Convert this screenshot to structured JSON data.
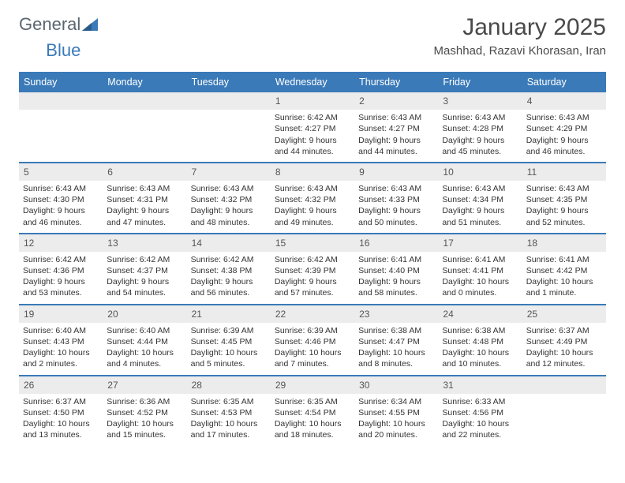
{
  "logo": {
    "text1": "General",
    "text2": "Blue"
  },
  "title": "January 2025",
  "location": "Mashhad, Razavi Khorasan, Iran",
  "colors": {
    "header_bg": "#3a7ab8",
    "header_text": "#ffffff",
    "daynum_bg": "#ececec",
    "border": "#3a7ab8"
  },
  "weekdays": [
    "Sunday",
    "Monday",
    "Tuesday",
    "Wednesday",
    "Thursday",
    "Friday",
    "Saturday"
  ],
  "weeks": [
    [
      {
        "n": "",
        "sunrise": "",
        "sunset": "",
        "daylight": ""
      },
      {
        "n": "",
        "sunrise": "",
        "sunset": "",
        "daylight": ""
      },
      {
        "n": "",
        "sunrise": "",
        "sunset": "",
        "daylight": ""
      },
      {
        "n": "1",
        "sunrise": "Sunrise: 6:42 AM",
        "sunset": "Sunset: 4:27 PM",
        "daylight": "Daylight: 9 hours and 44 minutes."
      },
      {
        "n": "2",
        "sunrise": "Sunrise: 6:43 AM",
        "sunset": "Sunset: 4:27 PM",
        "daylight": "Daylight: 9 hours and 44 minutes."
      },
      {
        "n": "3",
        "sunrise": "Sunrise: 6:43 AM",
        "sunset": "Sunset: 4:28 PM",
        "daylight": "Daylight: 9 hours and 45 minutes."
      },
      {
        "n": "4",
        "sunrise": "Sunrise: 6:43 AM",
        "sunset": "Sunset: 4:29 PM",
        "daylight": "Daylight: 9 hours and 46 minutes."
      }
    ],
    [
      {
        "n": "5",
        "sunrise": "Sunrise: 6:43 AM",
        "sunset": "Sunset: 4:30 PM",
        "daylight": "Daylight: 9 hours and 46 minutes."
      },
      {
        "n": "6",
        "sunrise": "Sunrise: 6:43 AM",
        "sunset": "Sunset: 4:31 PM",
        "daylight": "Daylight: 9 hours and 47 minutes."
      },
      {
        "n": "7",
        "sunrise": "Sunrise: 6:43 AM",
        "sunset": "Sunset: 4:32 PM",
        "daylight": "Daylight: 9 hours and 48 minutes."
      },
      {
        "n": "8",
        "sunrise": "Sunrise: 6:43 AM",
        "sunset": "Sunset: 4:32 PM",
        "daylight": "Daylight: 9 hours and 49 minutes."
      },
      {
        "n": "9",
        "sunrise": "Sunrise: 6:43 AM",
        "sunset": "Sunset: 4:33 PM",
        "daylight": "Daylight: 9 hours and 50 minutes."
      },
      {
        "n": "10",
        "sunrise": "Sunrise: 6:43 AM",
        "sunset": "Sunset: 4:34 PM",
        "daylight": "Daylight: 9 hours and 51 minutes."
      },
      {
        "n": "11",
        "sunrise": "Sunrise: 6:43 AM",
        "sunset": "Sunset: 4:35 PM",
        "daylight": "Daylight: 9 hours and 52 minutes."
      }
    ],
    [
      {
        "n": "12",
        "sunrise": "Sunrise: 6:42 AM",
        "sunset": "Sunset: 4:36 PM",
        "daylight": "Daylight: 9 hours and 53 minutes."
      },
      {
        "n": "13",
        "sunrise": "Sunrise: 6:42 AM",
        "sunset": "Sunset: 4:37 PM",
        "daylight": "Daylight: 9 hours and 54 minutes."
      },
      {
        "n": "14",
        "sunrise": "Sunrise: 6:42 AM",
        "sunset": "Sunset: 4:38 PM",
        "daylight": "Daylight: 9 hours and 56 minutes."
      },
      {
        "n": "15",
        "sunrise": "Sunrise: 6:42 AM",
        "sunset": "Sunset: 4:39 PM",
        "daylight": "Daylight: 9 hours and 57 minutes."
      },
      {
        "n": "16",
        "sunrise": "Sunrise: 6:41 AM",
        "sunset": "Sunset: 4:40 PM",
        "daylight": "Daylight: 9 hours and 58 minutes."
      },
      {
        "n": "17",
        "sunrise": "Sunrise: 6:41 AM",
        "sunset": "Sunset: 4:41 PM",
        "daylight": "Daylight: 10 hours and 0 minutes."
      },
      {
        "n": "18",
        "sunrise": "Sunrise: 6:41 AM",
        "sunset": "Sunset: 4:42 PM",
        "daylight": "Daylight: 10 hours and 1 minute."
      }
    ],
    [
      {
        "n": "19",
        "sunrise": "Sunrise: 6:40 AM",
        "sunset": "Sunset: 4:43 PM",
        "daylight": "Daylight: 10 hours and 2 minutes."
      },
      {
        "n": "20",
        "sunrise": "Sunrise: 6:40 AM",
        "sunset": "Sunset: 4:44 PM",
        "daylight": "Daylight: 10 hours and 4 minutes."
      },
      {
        "n": "21",
        "sunrise": "Sunrise: 6:39 AM",
        "sunset": "Sunset: 4:45 PM",
        "daylight": "Daylight: 10 hours and 5 minutes."
      },
      {
        "n": "22",
        "sunrise": "Sunrise: 6:39 AM",
        "sunset": "Sunset: 4:46 PM",
        "daylight": "Daylight: 10 hours and 7 minutes."
      },
      {
        "n": "23",
        "sunrise": "Sunrise: 6:38 AM",
        "sunset": "Sunset: 4:47 PM",
        "daylight": "Daylight: 10 hours and 8 minutes."
      },
      {
        "n": "24",
        "sunrise": "Sunrise: 6:38 AM",
        "sunset": "Sunset: 4:48 PM",
        "daylight": "Daylight: 10 hours and 10 minutes."
      },
      {
        "n": "25",
        "sunrise": "Sunrise: 6:37 AM",
        "sunset": "Sunset: 4:49 PM",
        "daylight": "Daylight: 10 hours and 12 minutes."
      }
    ],
    [
      {
        "n": "26",
        "sunrise": "Sunrise: 6:37 AM",
        "sunset": "Sunset: 4:50 PM",
        "daylight": "Daylight: 10 hours and 13 minutes."
      },
      {
        "n": "27",
        "sunrise": "Sunrise: 6:36 AM",
        "sunset": "Sunset: 4:52 PM",
        "daylight": "Daylight: 10 hours and 15 minutes."
      },
      {
        "n": "28",
        "sunrise": "Sunrise: 6:35 AM",
        "sunset": "Sunset: 4:53 PM",
        "daylight": "Daylight: 10 hours and 17 minutes."
      },
      {
        "n": "29",
        "sunrise": "Sunrise: 6:35 AM",
        "sunset": "Sunset: 4:54 PM",
        "daylight": "Daylight: 10 hours and 18 minutes."
      },
      {
        "n": "30",
        "sunrise": "Sunrise: 6:34 AM",
        "sunset": "Sunset: 4:55 PM",
        "daylight": "Daylight: 10 hours and 20 minutes."
      },
      {
        "n": "31",
        "sunrise": "Sunrise: 6:33 AM",
        "sunset": "Sunset: 4:56 PM",
        "daylight": "Daylight: 10 hours and 22 minutes."
      },
      {
        "n": "",
        "sunrise": "",
        "sunset": "",
        "daylight": ""
      }
    ]
  ]
}
